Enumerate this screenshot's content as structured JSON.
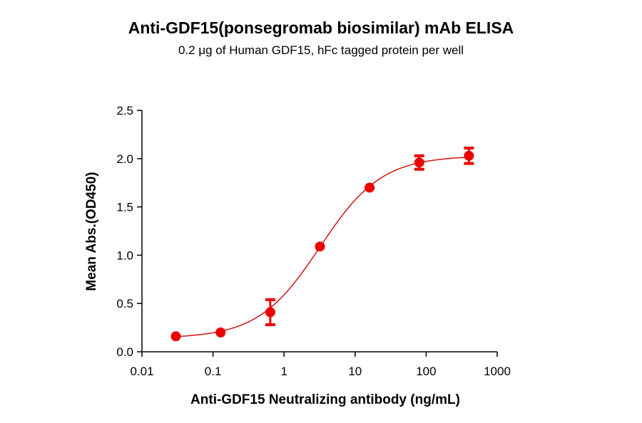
{
  "chart_data": {
    "type": "scatter",
    "title": "Anti-GDF15(ponsegromab biosimilar) mAb ELISA",
    "subtitle": "0.2 μg of Human GDF15, hFc tagged protein per well",
    "xlabel": "Anti-GDF15 Neutralizing antibody (ng/mL)",
    "ylabel": "Mean Abs.(OD450)",
    "x_scale": "log",
    "xlim": [
      0.01,
      1000
    ],
    "ylim": [
      0,
      2.5
    ],
    "x_ticks": [
      "0.01",
      "0.1",
      "1",
      "10",
      "100",
      "1000"
    ],
    "y_ticks": [
      "0.0",
      "0.5",
      "1.0",
      "1.5",
      "2.0",
      "2.5"
    ],
    "grid": false,
    "color": "#ee0000",
    "fit_line": "sigmoidal",
    "series": [
      {
        "x": [
          0.03,
          0.128,
          0.64,
          3.2,
          16,
          80,
          400
        ],
        "y": [
          0.16,
          0.2,
          0.41,
          1.09,
          1.7,
          1.96,
          2.03
        ],
        "error": [
          0.0,
          0.0,
          0.13,
          0.0,
          0.0,
          0.07,
          0.08
        ]
      }
    ]
  }
}
